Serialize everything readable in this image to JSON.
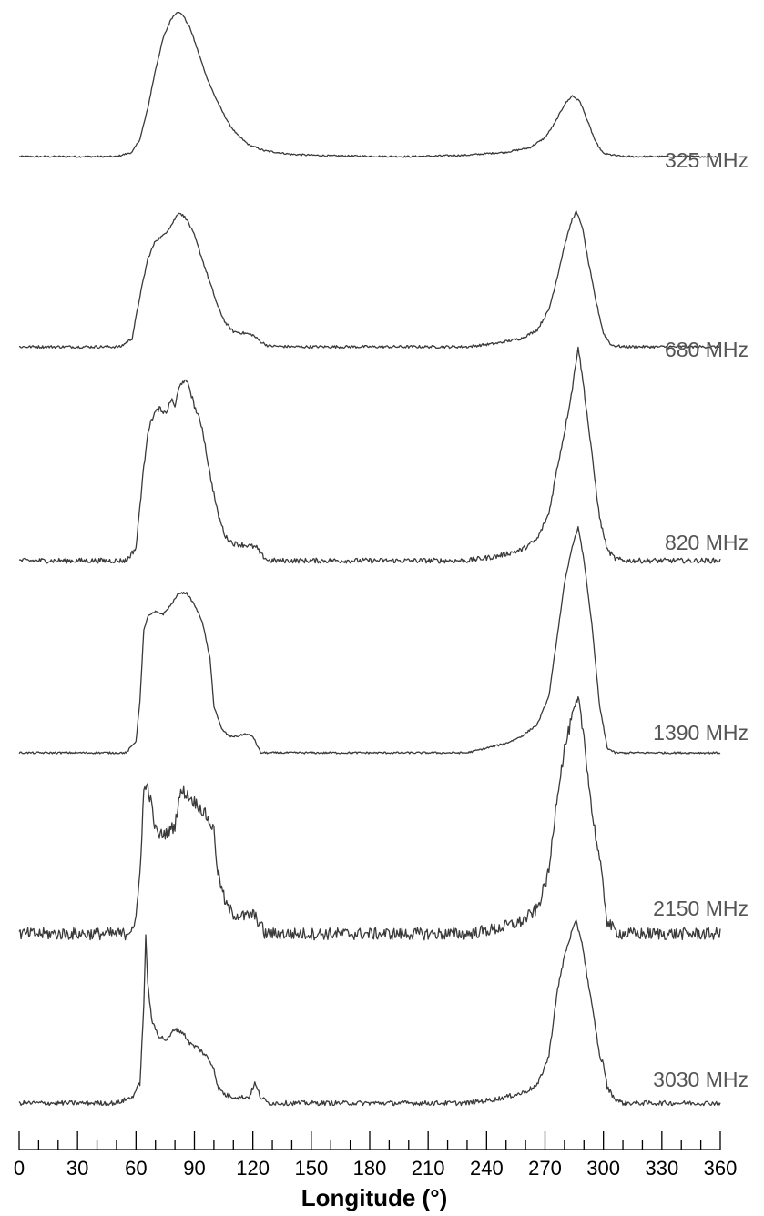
{
  "chart_data": {
    "type": "line",
    "xlabel": "Longitude (°)",
    "xlim": [
      0,
      360
    ],
    "x_ticks": [
      "0",
      "30",
      "60",
      "90",
      "120",
      "150",
      "180",
      "210",
      "240",
      "270",
      "300",
      "330",
      "360"
    ],
    "minor_tick_step": 10,
    "line_color": "#3a3a3a",
    "ylabel": "",
    "y_scale": "normalized intensity per profile (peak = 1)",
    "series": [
      {
        "name": "325 MHz",
        "noise": 0.006,
        "points": [
          [
            0,
            0
          ],
          [
            50,
            0
          ],
          [
            58,
            0.03
          ],
          [
            62,
            0.12
          ],
          [
            66,
            0.33
          ],
          [
            70,
            0.6
          ],
          [
            74,
            0.82
          ],
          [
            78,
            0.95
          ],
          [
            81,
            1.0
          ],
          [
            84,
            0.98
          ],
          [
            88,
            0.88
          ],
          [
            92,
            0.72
          ],
          [
            96,
            0.56
          ],
          [
            100,
            0.43
          ],
          [
            104,
            0.32
          ],
          [
            108,
            0.22
          ],
          [
            112,
            0.15
          ],
          [
            118,
            0.08
          ],
          [
            126,
            0.04
          ],
          [
            140,
            0.015
          ],
          [
            160,
            0.005
          ],
          [
            200,
            0
          ],
          [
            230,
            0.01
          ],
          [
            250,
            0.03
          ],
          [
            262,
            0.06
          ],
          [
            270,
            0.13
          ],
          [
            275,
            0.23
          ],
          [
            280,
            0.36
          ],
          [
            284,
            0.42
          ],
          [
            288,
            0.38
          ],
          [
            292,
            0.24
          ],
          [
            296,
            0.1
          ],
          [
            300,
            0.02
          ],
          [
            310,
            0
          ],
          [
            360,
            0
          ]
        ]
      },
      {
        "name": "680 MHz",
        "noise": 0.008,
        "points": [
          [
            0,
            0
          ],
          [
            52,
            0
          ],
          [
            58,
            0.05
          ],
          [
            62,
            0.3
          ],
          [
            66,
            0.52
          ],
          [
            70,
            0.63
          ],
          [
            74,
            0.66
          ],
          [
            78,
            0.72
          ],
          [
            82,
            0.8
          ],
          [
            86,
            0.76
          ],
          [
            90,
            0.66
          ],
          [
            94,
            0.52
          ],
          [
            98,
            0.38
          ],
          [
            102,
            0.24
          ],
          [
            106,
            0.14
          ],
          [
            110,
            0.09
          ],
          [
            116,
            0.08
          ],
          [
            120,
            0.07
          ],
          [
            124,
            0.03
          ],
          [
            128,
            0.005
          ],
          [
            140,
            0
          ],
          [
            230,
            0
          ],
          [
            245,
            0.02
          ],
          [
            258,
            0.05
          ],
          [
            266,
            0.1
          ],
          [
            272,
            0.22
          ],
          [
            276,
            0.4
          ],
          [
            280,
            0.6
          ],
          [
            284,
            0.76
          ],
          [
            286,
            0.8
          ],
          [
            289,
            0.72
          ],
          [
            292,
            0.52
          ],
          [
            296,
            0.28
          ],
          [
            300,
            0.08
          ],
          [
            304,
            0.01
          ],
          [
            310,
            0
          ],
          [
            360,
            0
          ]
        ]
      },
      {
        "name": "820 MHz",
        "noise": 0.012,
        "points": [
          [
            0,
            0
          ],
          [
            55,
            0
          ],
          [
            60,
            0.06
          ],
          [
            63,
            0.35
          ],
          [
            66,
            0.6
          ],
          [
            69,
            0.68
          ],
          [
            72,
            0.71
          ],
          [
            74,
            0.68
          ],
          [
            76,
            0.7
          ],
          [
            78,
            0.75
          ],
          [
            80,
            0.72
          ],
          [
            82,
            0.8
          ],
          [
            84,
            0.84
          ],
          [
            87,
            0.82
          ],
          [
            90,
            0.72
          ],
          [
            94,
            0.62
          ],
          [
            98,
            0.4
          ],
          [
            102,
            0.22
          ],
          [
            106,
            0.11
          ],
          [
            110,
            0.08
          ],
          [
            118,
            0.07
          ],
          [
            122,
            0.06
          ],
          [
            124,
            0.03
          ],
          [
            128,
            0
          ],
          [
            140,
            0
          ],
          [
            230,
            0
          ],
          [
            245,
            0.02
          ],
          [
            258,
            0.05
          ],
          [
            266,
            0.1
          ],
          [
            272,
            0.22
          ],
          [
            276,
            0.42
          ],
          [
            280,
            0.6
          ],
          [
            284,
            0.8
          ],
          [
            287,
            1.0
          ],
          [
            290,
            0.8
          ],
          [
            294,
            0.5
          ],
          [
            298,
            0.2
          ],
          [
            302,
            0.05
          ],
          [
            306,
            0.01
          ],
          [
            310,
            0
          ],
          [
            360,
            0
          ]
        ]
      },
      {
        "name": "1390 MHz",
        "noise": 0.004,
        "points": [
          [
            0,
            0
          ],
          [
            55,
            0
          ],
          [
            60,
            0.05
          ],
          [
            62,
            0.22
          ],
          [
            64,
            0.52
          ],
          [
            66,
            0.58
          ],
          [
            70,
            0.6
          ],
          [
            74,
            0.59
          ],
          [
            78,
            0.63
          ],
          [
            82,
            0.68
          ],
          [
            86,
            0.68
          ],
          [
            90,
            0.63
          ],
          [
            94,
            0.56
          ],
          [
            98,
            0.4
          ],
          [
            100,
            0.2
          ],
          [
            104,
            0.1
          ],
          [
            108,
            0.07
          ],
          [
            112,
            0.07
          ],
          [
            116,
            0.08
          ],
          [
            120,
            0.07
          ],
          [
            124,
            0
          ],
          [
            130,
            0
          ],
          [
            230,
            0
          ],
          [
            240,
            0.02
          ],
          [
            250,
            0.04
          ],
          [
            258,
            0.07
          ],
          [
            266,
            0.12
          ],
          [
            272,
            0.24
          ],
          [
            276,
            0.48
          ],
          [
            280,
            0.72
          ],
          [
            284,
            0.88
          ],
          [
            287,
            0.96
          ],
          [
            290,
            0.82
          ],
          [
            294,
            0.55
          ],
          [
            298,
            0.2
          ],
          [
            302,
            0.02
          ],
          [
            306,
            0
          ],
          [
            360,
            0
          ]
        ]
      },
      {
        "name": "2150 MHz",
        "noise": 0.025,
        "points": [
          [
            0,
            0
          ],
          [
            55,
            0
          ],
          [
            60,
            0.05
          ],
          [
            62,
            0.25
          ],
          [
            64,
            0.58
          ],
          [
            66,
            0.6
          ],
          [
            68,
            0.52
          ],
          [
            70,
            0.42
          ],
          [
            72,
            0.4
          ],
          [
            76,
            0.41
          ],
          [
            80,
            0.44
          ],
          [
            82,
            0.55
          ],
          [
            84,
            0.58
          ],
          [
            88,
            0.55
          ],
          [
            92,
            0.52
          ],
          [
            96,
            0.48
          ],
          [
            100,
            0.42
          ],
          [
            102,
            0.25
          ],
          [
            106,
            0.12
          ],
          [
            110,
            0.08
          ],
          [
            116,
            0.07
          ],
          [
            120,
            0.08
          ],
          [
            124,
            0.04
          ],
          [
            126,
            0
          ],
          [
            135,
            0
          ],
          [
            230,
            0
          ],
          [
            245,
            0.02
          ],
          [
            258,
            0.05
          ],
          [
            266,
            0.1
          ],
          [
            272,
            0.25
          ],
          [
            276,
            0.55
          ],
          [
            280,
            0.75
          ],
          [
            284,
            0.88
          ],
          [
            287,
            0.95
          ],
          [
            290,
            0.8
          ],
          [
            294,
            0.5
          ],
          [
            298,
            0.3
          ],
          [
            300,
            0.18
          ],
          [
            302,
            0.05
          ],
          [
            306,
            0.01
          ],
          [
            310,
            0
          ],
          [
            360,
            0
          ]
        ]
      },
      {
        "name": "3030 MHz",
        "noise": 0.012,
        "points": [
          [
            0,
            0
          ],
          [
            50,
            0
          ],
          [
            58,
            0.03
          ],
          [
            62,
            0.1
          ],
          [
            64,
            0.5
          ],
          [
            65,
            0.85
          ],
          [
            66,
            0.62
          ],
          [
            68,
            0.42
          ],
          [
            72,
            0.34
          ],
          [
            76,
            0.32
          ],
          [
            80,
            0.38
          ],
          [
            84,
            0.36
          ],
          [
            88,
            0.3
          ],
          [
            92,
            0.28
          ],
          [
            96,
            0.24
          ],
          [
            100,
            0.18
          ],
          [
            102,
            0.08
          ],
          [
            106,
            0.04
          ],
          [
            112,
            0.03
          ],
          [
            118,
            0.03
          ],
          [
            121,
            0.1
          ],
          [
            124,
            0.03
          ],
          [
            128,
            0
          ],
          [
            140,
            0
          ],
          [
            230,
            0
          ],
          [
            245,
            0.02
          ],
          [
            258,
            0.05
          ],
          [
            266,
            0.09
          ],
          [
            272,
            0.24
          ],
          [
            276,
            0.55
          ],
          [
            280,
            0.75
          ],
          [
            284,
            0.88
          ],
          [
            286,
            0.92
          ],
          [
            289,
            0.82
          ],
          [
            292,
            0.62
          ],
          [
            296,
            0.38
          ],
          [
            298,
            0.24
          ],
          [
            300,
            0.2
          ],
          [
            302,
            0.08
          ],
          [
            306,
            0.02
          ],
          [
            310,
            0
          ],
          [
            360,
            0
          ]
        ]
      }
    ]
  }
}
